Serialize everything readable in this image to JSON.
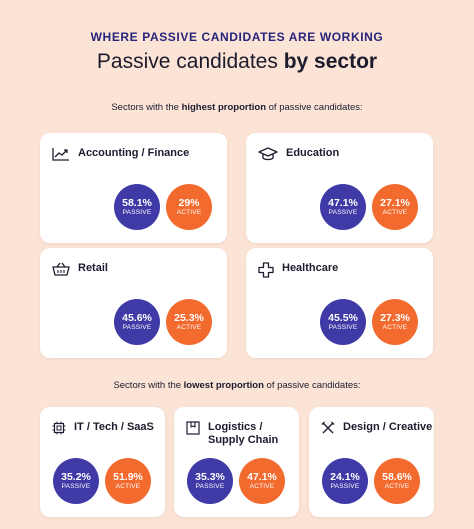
{
  "header": {
    "kicker": "WHERE PASSIVE CANDIDATES ARE WORKING",
    "title_plain": "Passive candidates ",
    "title_bold": "by sector"
  },
  "highest": {
    "pre": "Sectors with the ",
    "bold": "highest proportion",
    "post": " of passive candidates:"
  },
  "lowest": {
    "pre": "Sectors with the ",
    "bold": "lowest proportion",
    "post": " of passive candidates:"
  },
  "labels": {
    "passive": "PASSIVE",
    "active": "ACTIVE"
  },
  "colors": {
    "passive": "#3f3aa6",
    "active": "#f26a2e",
    "background": "#fbe3d6"
  },
  "sectors": [
    {
      "name": "Accounting / Finance",
      "icon": "chart-icon",
      "passive": "58.1%",
      "active": "29%"
    },
    {
      "name": "Education",
      "icon": "graduation-cap-icon",
      "passive": "47.1%",
      "active": "27.1%"
    },
    {
      "name": "Retail",
      "icon": "basket-icon",
      "passive": "45.6%",
      "active": "25.3%"
    },
    {
      "name": "Healthcare",
      "icon": "medical-cross-icon",
      "passive": "45.5%",
      "active": "27.3%"
    },
    {
      "name": "IT / Tech / SaaS",
      "icon": "chip-icon",
      "passive": "35.2%",
      "active": "51.9%"
    },
    {
      "name_line1": "Logistics /",
      "name_line2": "Supply Chain",
      "icon": "box-icon",
      "passive": "35.3%",
      "active": "47.1%"
    },
    {
      "name": "Design / Creative",
      "icon": "design-tools-icon",
      "passive": "24.1%",
      "active": "58.6%"
    }
  ]
}
